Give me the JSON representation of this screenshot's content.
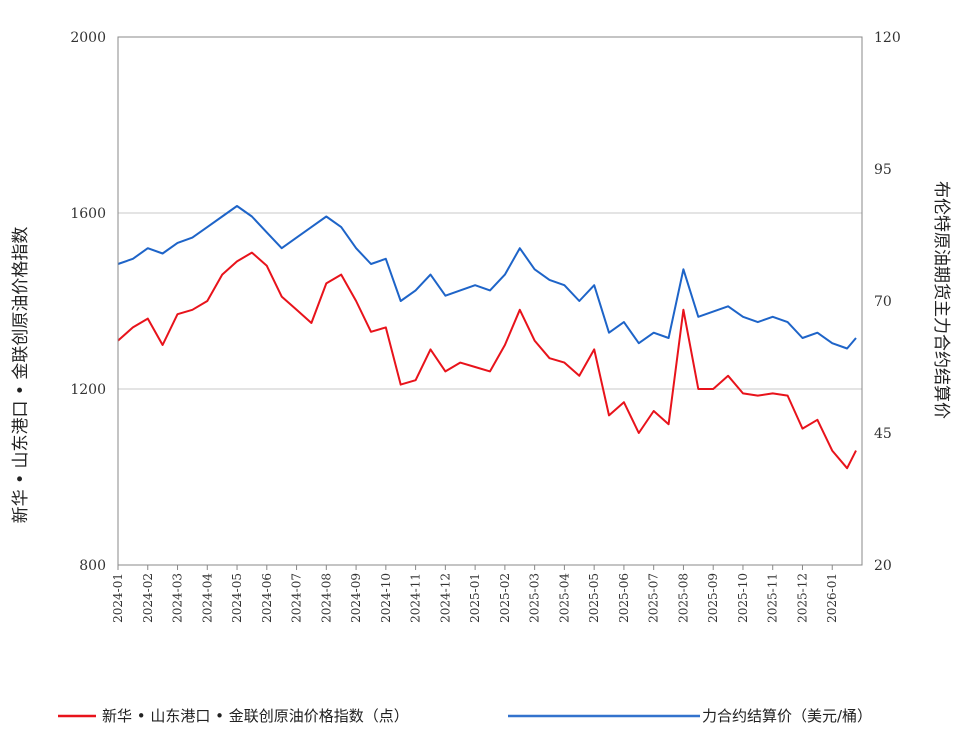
{
  "chart_data": {
    "type": "line",
    "title": "",
    "ylabel_left": "新华 • 山东港口 • 金联创原油价格指数",
    "ylabel_right": "布伦特原油期货主力合约结算价",
    "ylim_left": [
      800,
      2000
    ],
    "ylim_right": [
      20,
      120
    ],
    "yticks_left": [
      "800",
      "1200",
      "1600",
      "2000"
    ],
    "yticks_right": [
      "20",
      "45",
      "70",
      "95",
      "120"
    ],
    "grid": "horizontal",
    "legend_position": "bottom",
    "xlabels": [
      "2024-01",
      "2024-02",
      "2024-03",
      "2024-04",
      "2024-05",
      "2024-06",
      "2024-07",
      "2024-08",
      "2024-09",
      "2024-10",
      "2024-11",
      "2024-12",
      "2025-01",
      "2025-02",
      "2025-03",
      "2025-04",
      "2025-05",
      "2025-06",
      "2025-07",
      "2025-08",
      "2025-09",
      "2025-10",
      "2025-11",
      "2025-12",
      "2026-01"
    ],
    "x": [
      0,
      0.5,
      1,
      1.5,
      2,
      2.5,
      3,
      3.5,
      4,
      4.5,
      5,
      5.5,
      6,
      6.5,
      7,
      7.5,
      8,
      8.5,
      9,
      9.5,
      10,
      10.5,
      11,
      11.5,
      12,
      12.5,
      13,
      13.5,
      14,
      14.5,
      15,
      15.5,
      16,
      16.5,
      17,
      17.5,
      18,
      18.5,
      19,
      19.5,
      20,
      20.5,
      21,
      21.5,
      22,
      22.5,
      23,
      23.5,
      24,
      24.5,
      24.8
    ],
    "series": [
      {
        "name": "新华 • 山东港口 • 金联创原油价格指数（点）",
        "axis": "left",
        "color": "#e8131b",
        "values": [
          1310,
          1340,
          1360,
          1300,
          1370,
          1380,
          1400,
          1460,
          1490,
          1510,
          1480,
          1410,
          1380,
          1350,
          1440,
          1460,
          1400,
          1330,
          1340,
          1210,
          1220,
          1290,
          1240,
          1260,
          1250,
          1240,
          1300,
          1380,
          1310,
          1270,
          1260,
          1230,
          1290,
          1140,
          1170,
          1100,
          1150,
          1120,
          1380,
          1200,
          1200,
          1230,
          1190,
          1185,
          1190,
          1185,
          1110,
          1130,
          1060,
          1020,
          1060
        ]
      },
      {
        "name": "力合约结算价（美元/桶）",
        "axis": "right",
        "color": "#1e64c8",
        "values": [
          77,
          78,
          80,
          79,
          81,
          82,
          84,
          86,
          88,
          86,
          83,
          80,
          82,
          84,
          86,
          84,
          80,
          77,
          78,
          70,
          72,
          75,
          71,
          72,
          73,
          72,
          75,
          80,
          76,
          74,
          73,
          70,
          73,
          64,
          66,
          62,
          64,
          63,
          76,
          67,
          68,
          69,
          67,
          66,
          67,
          66,
          63,
          64,
          62,
          61,
          63
        ]
      }
    ]
  }
}
